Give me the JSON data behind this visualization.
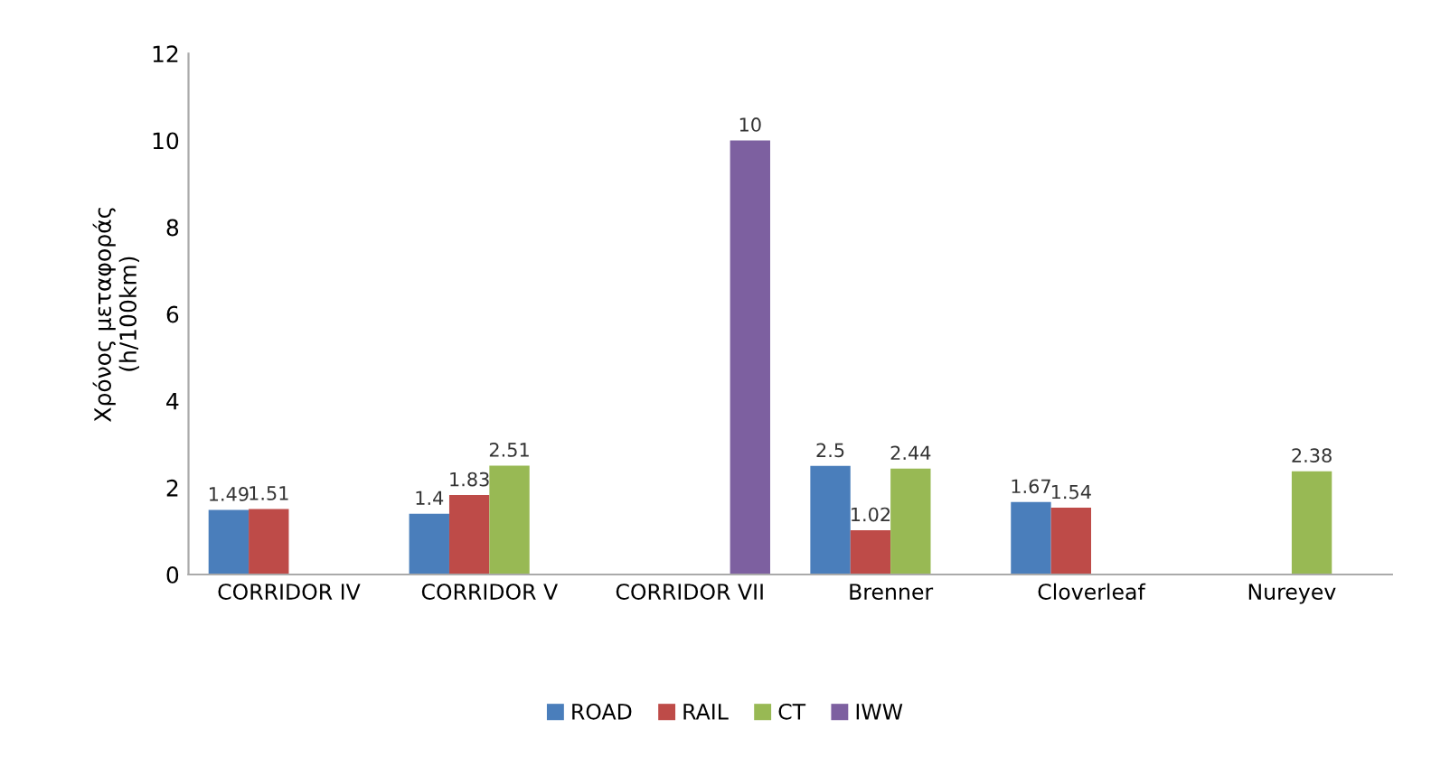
{
  "chart_data": {
    "type": "bar",
    "ylabel": "Χρόνος μεταφοράς\n(h/100km)",
    "categories": [
      "CORRIDOR IV",
      "CORRIDOR V",
      "CORRIDOR VII",
      "Brenner",
      "Cloverleaf",
      "Nureyev"
    ],
    "series": [
      {
        "name": "ROAD",
        "color": "#4a7ebb",
        "values": [
          1.49,
          1.4,
          null,
          2.5,
          1.67,
          null
        ]
      },
      {
        "name": "RAIL",
        "color": "#be4b48",
        "values": [
          1.51,
          1.83,
          null,
          1.02,
          1.54,
          null
        ]
      },
      {
        "name": "CT",
        "color": "#98b954",
        "values": [
          null,
          2.51,
          null,
          2.44,
          null,
          2.38
        ]
      },
      {
        "name": "IWW",
        "color": "#7d60a0",
        "values": [
          null,
          null,
          10,
          null,
          null,
          null
        ]
      }
    ],
    "ylim": [
      0,
      12
    ],
    "yticks": [
      0,
      2,
      4,
      6,
      8,
      10,
      12
    ],
    "grid": false,
    "legend": "bottom",
    "data_labels": true
  }
}
